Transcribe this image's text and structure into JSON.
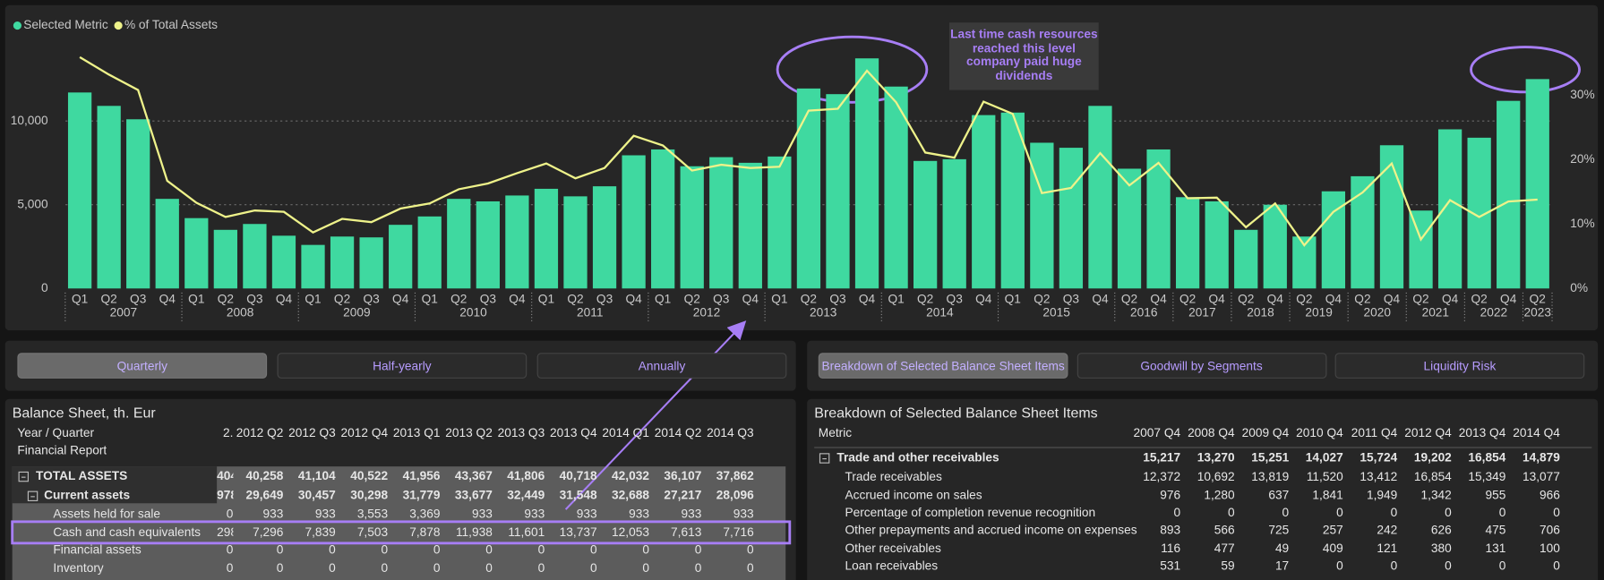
{
  "chart_data": {
    "type": "bar",
    "categories": [
      "Q1",
      "Q2",
      "Q3",
      "Q4",
      "Q1",
      "Q2",
      "Q3",
      "Q4",
      "Q1",
      "Q2",
      "Q3",
      "Q4",
      "Q1",
      "Q2",
      "Q3",
      "Q4",
      "Q1",
      "Q2",
      "Q3",
      "Q4",
      "Q1",
      "Q2",
      "Q3",
      "Q4",
      "Q1",
      "Q2",
      "Q3",
      "Q4",
      "Q1",
      "Q2",
      "Q3",
      "Q4",
      "Q1",
      "Q2",
      "Q3",
      "Q4",
      "Q2",
      "Q4",
      "Q2",
      "Q4",
      "Q2",
      "Q4",
      "Q2",
      "Q4",
      "Q2",
      "Q4",
      "Q2",
      "Q4",
      "Q2",
      "Q4",
      "Q2"
    ],
    "category_years": [
      "2007",
      "2007",
      "2007",
      "2007",
      "2008",
      "2008",
      "2008",
      "2008",
      "2009",
      "2009",
      "2009",
      "2009",
      "2010",
      "2010",
      "2010",
      "2010",
      "2011",
      "2011",
      "2011",
      "2011",
      "2012",
      "2012",
      "2012",
      "2012",
      "2013",
      "2013",
      "2013",
      "2013",
      "2014",
      "2014",
      "2014",
      "2014",
      "2015",
      "2015",
      "2015",
      "2015",
      "2016",
      "2016",
      "2017",
      "2017",
      "2018",
      "2018",
      "2019",
      "2019",
      "2020",
      "2020",
      "2021",
      "2021",
      "2022",
      "2022",
      "2023"
    ],
    "series": [
      {
        "name": "Selected Metric",
        "color": "#3fd9a0",
        "values": [
          11700,
          10900,
          10100,
          5350,
          4200,
          3500,
          3850,
          3150,
          2600,
          3100,
          3050,
          3800,
          4300,
          5350,
          5200,
          5550,
          5950,
          5500,
          6100,
          7950,
          8300,
          7296,
          7839,
          7503,
          7878,
          11938,
          11601,
          13737,
          12053,
          7613,
          7716,
          10350,
          10500,
          8700,
          8400,
          10900,
          7150,
          8300,
          5450,
          5200,
          3500,
          5000,
          3100,
          5800,
          6700,
          8550,
          4650,
          9500,
          9000,
          11200,
          12500
        ]
      },
      {
        "name": "% of Total Assets",
        "color": "#eef28a",
        "type": "line",
        "axis": "y2",
        "values": [
          35.9,
          33.2,
          30.8,
          16.7,
          13.3,
          11.1,
          12.1,
          11.9,
          8.7,
          10.8,
          10.3,
          12.4,
          13.2,
          15.4,
          16.3,
          17.9,
          19.4,
          17.1,
          18.7,
          23.7,
          22.2,
          18.3,
          19.2,
          18.7,
          18.9,
          27.6,
          27.9,
          33.8,
          28.9,
          21.1,
          20.3,
          29.0,
          27.1,
          14.8,
          15.6,
          21.0,
          16.0,
          19.5,
          14.0,
          14.1,
          9.5,
          13.2,
          6.7,
          11.9,
          14.9,
          19.4,
          7.6,
          13.7,
          11.1,
          13.5,
          13.8
        ]
      }
    ],
    "ylim": [
      0,
      16000
    ],
    "yticks": [
      0,
      {
        "value": 5000,
        "label": "5,000"
      },
      {
        "value": 10000,
        "label": "10,000"
      }
    ],
    "y2lim": [
      0,
      41.6
    ],
    "y2ticks": [
      {
        "value": 0,
        "label": "0%"
      },
      {
        "value": 10,
        "label": "10%"
      },
      {
        "value": 20,
        "label": "20%"
      },
      {
        "value": 30,
        "label": "30%"
      }
    ],
    "grid": true,
    "legend": "top-left",
    "annotation": "Last time cash resources reached this level company paid huge dividends"
  },
  "period_buttons": [
    "Quarterly",
    "Half-yearly",
    "Annually"
  ],
  "view_buttons": [
    "Breakdown of Selected Balance Sheet Items",
    "Goodwill by Segments",
    "Liquidity Risk"
  ],
  "balance_sheet": {
    "title": "Balance Sheet, th. Eur",
    "header": "Year / Quarter",
    "subheader": "Financial Report",
    "columns": [
      "2.",
      "2012 Q2",
      "2012 Q3",
      "2012 Q4",
      "2013 Q1",
      "2013 Q2",
      "2013 Q3",
      "2013 Q4",
      "2014 Q1",
      "2014 Q2",
      "2014 Q3"
    ],
    "rows": [
      {
        "label": "TOTAL ASSETS",
        "cells": [
          "404",
          "40,258",
          "41,104",
          "40,522",
          "41,956",
          "43,367",
          "41,806",
          "40,718",
          "42,032",
          "36,107",
          "37,862"
        ]
      },
      {
        "label": "Current assets",
        "cells": [
          "978",
          "29,649",
          "30,457",
          "30,298",
          "31,779",
          "33,677",
          "32,449",
          "31,548",
          "32,688",
          "27,217",
          "28,096"
        ]
      },
      {
        "label": "Assets held for sale",
        "cells": [
          "0",
          "933",
          "933",
          "3,553",
          "3,369",
          "933",
          "933",
          "933",
          "933",
          "933",
          "933"
        ]
      },
      {
        "label": "Cash and cash equivalents",
        "cells": [
          "298",
          "7,296",
          "7,839",
          "7,503",
          "7,878",
          "11,938",
          "11,601",
          "13,737",
          "12,053",
          "7,613",
          "7,716"
        ]
      },
      {
        "label": "Financial assets",
        "cells": [
          "0",
          "0",
          "0",
          "0",
          "0",
          "0",
          "0",
          "0",
          "0",
          "0",
          "0"
        ]
      },
      {
        "label": "Inventory",
        "cells": [
          "0",
          "0",
          "0",
          "0",
          "0",
          "0",
          "0",
          "0",
          "0",
          "0",
          "0"
        ]
      }
    ]
  },
  "breakdown": {
    "title": "Breakdown of Selected Balance Sheet Items",
    "header": "Metric",
    "columns": [
      "2007 Q4",
      "2008 Q4",
      "2009 Q4",
      "2010 Q4",
      "2011 Q4",
      "2012 Q4",
      "2013 Q4",
      "2014 Q4"
    ],
    "rows": [
      {
        "label": "Trade and other receivables",
        "cells": [
          "15,217",
          "13,270",
          "15,251",
          "14,027",
          "15,724",
          "19,202",
          "16,854",
          "14,879"
        ]
      },
      {
        "label": "Trade receivables",
        "cells": [
          "12,372",
          "10,692",
          "13,819",
          "11,520",
          "13,412",
          "16,854",
          "15,349",
          "13,077"
        ]
      },
      {
        "label": "Accrued income on sales",
        "cells": [
          "976",
          "1,280",
          "637",
          "1,841",
          "1,949",
          "1,342",
          "955",
          "966"
        ]
      },
      {
        "label": "Percentage of completion revenue recognition",
        "cells": [
          "0",
          "0",
          "0",
          "0",
          "0",
          "0",
          "0",
          "0"
        ]
      },
      {
        "label": "Other prepayments and accrued income on expenses",
        "cells": [
          "893",
          "566",
          "725",
          "257",
          "242",
          "626",
          "475",
          "706"
        ]
      },
      {
        "label": "Other receivables",
        "cells": [
          "116",
          "477",
          "49",
          "409",
          "121",
          "380",
          "131",
          "100"
        ]
      },
      {
        "label": "Loan receivables",
        "cells": [
          "531",
          "59",
          "17",
          "0",
          "0",
          "0",
          "0",
          "0"
        ]
      }
    ]
  }
}
